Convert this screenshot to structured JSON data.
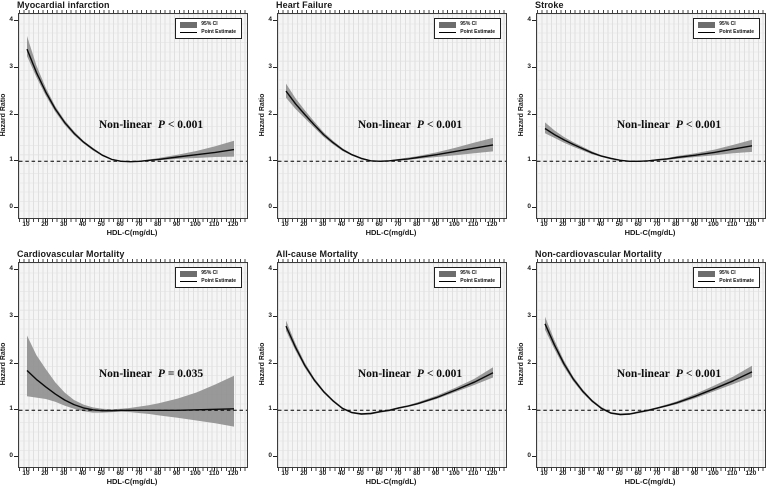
{
  "figure": {
    "y_axis": {
      "label": "Hazard Ratio",
      "ticks": [
        0,
        1,
        2,
        3,
        4
      ]
    },
    "x_axis": {
      "label": "HDL-C(mg/dL)",
      "ticks": [
        10,
        20,
        30,
        40,
        50,
        60,
        70,
        80,
        90,
        100,
        110,
        120
      ]
    },
    "legend": {
      "ci_label": "95% CI",
      "line_label": "Point Estimate"
    },
    "colors": {
      "ci_band": "#8f8f8f",
      "point_line": "#0a0a0a",
      "reference_line": "#000000",
      "panel_bg": "#f5f5f5",
      "grid_v": "#e0e0e0",
      "grid_h": "#eaeaea",
      "legend_swatch": "#6d6d6d"
    }
  },
  "chart_data": [
    {
      "type": "line",
      "title": "Myocardial infarction",
      "annotation": {
        "label": "Non-linear",
        "p_symbol": "P",
        "comparison": "< 0.001"
      },
      "reference_line": 1.0,
      "ylim": [
        -0.2,
        4.17
      ],
      "xlim": [
        5.7,
        126.8
      ],
      "x": [
        10,
        15,
        20,
        25,
        30,
        35,
        40,
        45,
        50,
        55,
        60,
        65,
        70,
        75,
        80,
        90,
        100,
        110,
        120
      ],
      "estimate": [
        3.4,
        2.9,
        2.48,
        2.12,
        1.83,
        1.6,
        1.41,
        1.26,
        1.13,
        1.04,
        1.0,
        0.99,
        1.0,
        1.02,
        1.04,
        1.09,
        1.14,
        1.19,
        1.25
      ],
      "lower": [
        3.25,
        2.8,
        2.4,
        2.06,
        1.78,
        1.56,
        1.38,
        1.23,
        1.11,
        1.03,
        0.99,
        0.98,
        0.99,
        1.0,
        1.02,
        1.05,
        1.07,
        1.09,
        1.1
      ],
      "upper": [
        3.68,
        3.05,
        2.57,
        2.18,
        1.88,
        1.64,
        1.44,
        1.29,
        1.15,
        1.05,
        1.01,
        1.0,
        1.01,
        1.04,
        1.07,
        1.14,
        1.22,
        1.32,
        1.44
      ]
    },
    {
      "type": "line",
      "title": "Heart Failure",
      "annotation": {
        "label": "Non-linear",
        "p_symbol": "P",
        "comparison": "< 0.001"
      },
      "reference_line": 1.0,
      "ylim": [
        -0.2,
        4.17
      ],
      "xlim": [
        5.7,
        126.8
      ],
      "x": [
        10,
        15,
        20,
        25,
        30,
        35,
        40,
        45,
        50,
        55,
        60,
        65,
        70,
        75,
        80,
        90,
        100,
        110,
        120
      ],
      "estimate": [
        2.5,
        2.23,
        2.0,
        1.78,
        1.57,
        1.4,
        1.25,
        1.14,
        1.06,
        1.01,
        1.0,
        1.01,
        1.03,
        1.05,
        1.08,
        1.14,
        1.21,
        1.28,
        1.35
      ],
      "lower": [
        2.36,
        2.12,
        1.92,
        1.72,
        1.52,
        1.36,
        1.22,
        1.12,
        1.04,
        1.0,
        0.99,
        1.0,
        1.01,
        1.03,
        1.05,
        1.09,
        1.13,
        1.17,
        1.21
      ],
      "upper": [
        2.66,
        2.35,
        2.09,
        1.85,
        1.62,
        1.44,
        1.28,
        1.16,
        1.08,
        1.02,
        1.01,
        1.02,
        1.05,
        1.08,
        1.11,
        1.19,
        1.29,
        1.4,
        1.5
      ]
    },
    {
      "type": "line",
      "title": "Stroke",
      "annotation": {
        "label": "Non-linear",
        "p_symbol": "P",
        "comparison": "< 0.001"
      },
      "reference_line": 1.0,
      "ylim": [
        -0.2,
        4.17
      ],
      "xlim": [
        5.7,
        126.8
      ],
      "x": [
        10,
        15,
        20,
        25,
        30,
        35,
        40,
        45,
        50,
        55,
        60,
        65,
        70,
        75,
        80,
        90,
        100,
        110,
        120
      ],
      "estimate": [
        1.7,
        1.57,
        1.46,
        1.36,
        1.27,
        1.18,
        1.11,
        1.06,
        1.02,
        1.0,
        1.0,
        1.01,
        1.03,
        1.05,
        1.08,
        1.13,
        1.19,
        1.26,
        1.33
      ],
      "lower": [
        1.6,
        1.5,
        1.4,
        1.31,
        1.23,
        1.15,
        1.09,
        1.04,
        1.01,
        0.99,
        0.99,
        1.0,
        1.01,
        1.03,
        1.05,
        1.09,
        1.13,
        1.17,
        1.2
      ],
      "upper": [
        1.83,
        1.66,
        1.52,
        1.41,
        1.31,
        1.21,
        1.13,
        1.08,
        1.03,
        1.01,
        1.01,
        1.02,
        1.05,
        1.07,
        1.11,
        1.17,
        1.25,
        1.35,
        1.46
      ]
    },
    {
      "type": "line",
      "title": "Cardiovascular Mortality",
      "annotation": {
        "label": "Non-linear",
        "p_symbol": "P",
        "comparison": "= 0.035"
      },
      "reference_line": 1.0,
      "ylim": [
        -0.2,
        4.17
      ],
      "xlim": [
        5.7,
        126.8
      ],
      "x": [
        10,
        15,
        20,
        25,
        30,
        35,
        40,
        45,
        50,
        55,
        60,
        65,
        70,
        75,
        80,
        90,
        100,
        110,
        120
      ],
      "estimate": [
        1.85,
        1.66,
        1.5,
        1.35,
        1.22,
        1.12,
        1.05,
        1.01,
        0.99,
        0.99,
        1.0,
        1.0,
        1.0,
        1.0,
        1.0,
        1.0,
        1.01,
        1.02,
        1.03
      ],
      "lower": [
        1.3,
        1.27,
        1.24,
        1.18,
        1.1,
        1.03,
        0.98,
        0.95,
        0.95,
        0.96,
        0.97,
        0.96,
        0.94,
        0.92,
        0.89,
        0.84,
        0.78,
        0.72,
        0.65
      ],
      "upper": [
        2.6,
        2.18,
        1.88,
        1.6,
        1.38,
        1.22,
        1.12,
        1.06,
        1.03,
        1.02,
        1.03,
        1.05,
        1.08,
        1.11,
        1.15,
        1.25,
        1.38,
        1.55,
        1.74
      ]
    },
    {
      "type": "line",
      "title": "All-cause Mortality",
      "annotation": {
        "label": "Non-linear",
        "p_symbol": "P",
        "comparison": "< 0.001"
      },
      "reference_line": 1.0,
      "ylim": [
        -0.2,
        4.17
      ],
      "xlim": [
        5.7,
        126.8
      ],
      "x": [
        10,
        15,
        20,
        25,
        30,
        35,
        40,
        45,
        50,
        55,
        60,
        65,
        70,
        75,
        80,
        90,
        100,
        110,
        120
      ],
      "estimate": [
        2.8,
        2.35,
        1.96,
        1.65,
        1.4,
        1.2,
        1.04,
        0.95,
        0.92,
        0.93,
        0.97,
        1.0,
        1.05,
        1.09,
        1.14,
        1.27,
        1.43,
        1.6,
        1.8
      ],
      "lower": [
        2.7,
        2.28,
        1.91,
        1.61,
        1.37,
        1.18,
        1.02,
        0.93,
        0.9,
        0.91,
        0.95,
        0.98,
        1.03,
        1.07,
        1.12,
        1.24,
        1.39,
        1.54,
        1.7
      ],
      "upper": [
        2.92,
        2.43,
        2.02,
        1.69,
        1.43,
        1.23,
        1.06,
        0.97,
        0.94,
        0.95,
        0.99,
        1.02,
        1.07,
        1.11,
        1.17,
        1.31,
        1.48,
        1.67,
        1.92
      ]
    },
    {
      "type": "line",
      "title": "Non-cardiovascular Mortality",
      "annotation": {
        "label": "Non-linear",
        "p_symbol": "P",
        "comparison": "< 0.001"
      },
      "reference_line": 1.0,
      "ylim": [
        -0.2,
        4.17
      ],
      "xlim": [
        5.7,
        126.8
      ],
      "x": [
        10,
        15,
        20,
        25,
        30,
        35,
        40,
        45,
        50,
        55,
        60,
        65,
        70,
        75,
        80,
        90,
        100,
        110,
        120
      ],
      "estimate": [
        2.85,
        2.4,
        2.0,
        1.67,
        1.41,
        1.2,
        1.04,
        0.94,
        0.91,
        0.92,
        0.96,
        1.0,
        1.05,
        1.1,
        1.16,
        1.3,
        1.46,
        1.63,
        1.82
      ],
      "lower": [
        2.72,
        2.31,
        1.93,
        1.62,
        1.37,
        1.17,
        1.02,
        0.92,
        0.89,
        0.9,
        0.94,
        0.98,
        1.03,
        1.08,
        1.13,
        1.26,
        1.41,
        1.56,
        1.71
      ],
      "upper": [
        3.0,
        2.5,
        2.07,
        1.72,
        1.45,
        1.23,
        1.07,
        0.96,
        0.93,
        0.94,
        0.98,
        1.02,
        1.07,
        1.13,
        1.19,
        1.35,
        1.53,
        1.72,
        1.95
      ]
    }
  ]
}
